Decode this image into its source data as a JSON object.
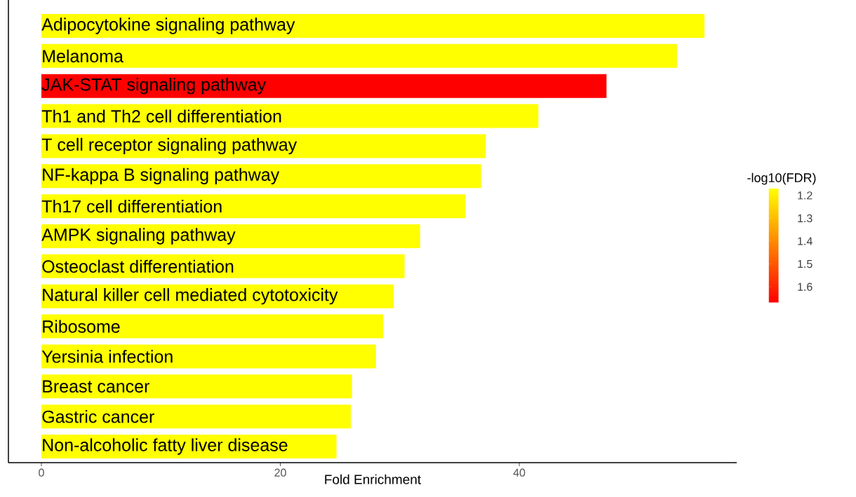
{
  "chart_data": {
    "type": "bar",
    "orientation": "horizontal",
    "xlabel": "Fold Enrichment",
    "clabel": "-log10(FDR)",
    "categories": [
      "Adipocytokine signaling pathway",
      "Melanoma",
      "JAK-STAT signaling pathway",
      "Th1 and Th2 cell differentiation",
      "T cell receptor signaling pathway",
      "NF-kappa B signaling pathway",
      "Th17 cell differentiation",
      "AMPK signaling pathway",
      "Osteoclast differentiation",
      "Natural killer cell mediated cytotoxicity",
      "Ribosome",
      "Yersinia infection",
      "Breast cancer",
      "Gastric cancer",
      "Non-alcoholic fatty liver disease"
    ],
    "values": [
      55.5,
      53.2,
      47.3,
      41.6,
      37.2,
      36.8,
      35.5,
      31.7,
      30.4,
      29.5,
      28.6,
      28.0,
      26.0,
      25.9,
      24.7
    ],
    "cvalues": [
      1.17,
      1.17,
      1.67,
      1.17,
      1.17,
      1.17,
      1.17,
      1.17,
      1.17,
      1.17,
      1.17,
      1.17,
      1.17,
      1.17,
      1.17
    ],
    "clim": [
      1.17,
      1.67
    ],
    "cticks": [
      1.2,
      1.3,
      1.4,
      1.5,
      1.6
    ],
    "xlim": [
      -2.76,
      58.2
    ],
    "xticks": [
      0,
      20,
      40
    ]
  }
}
